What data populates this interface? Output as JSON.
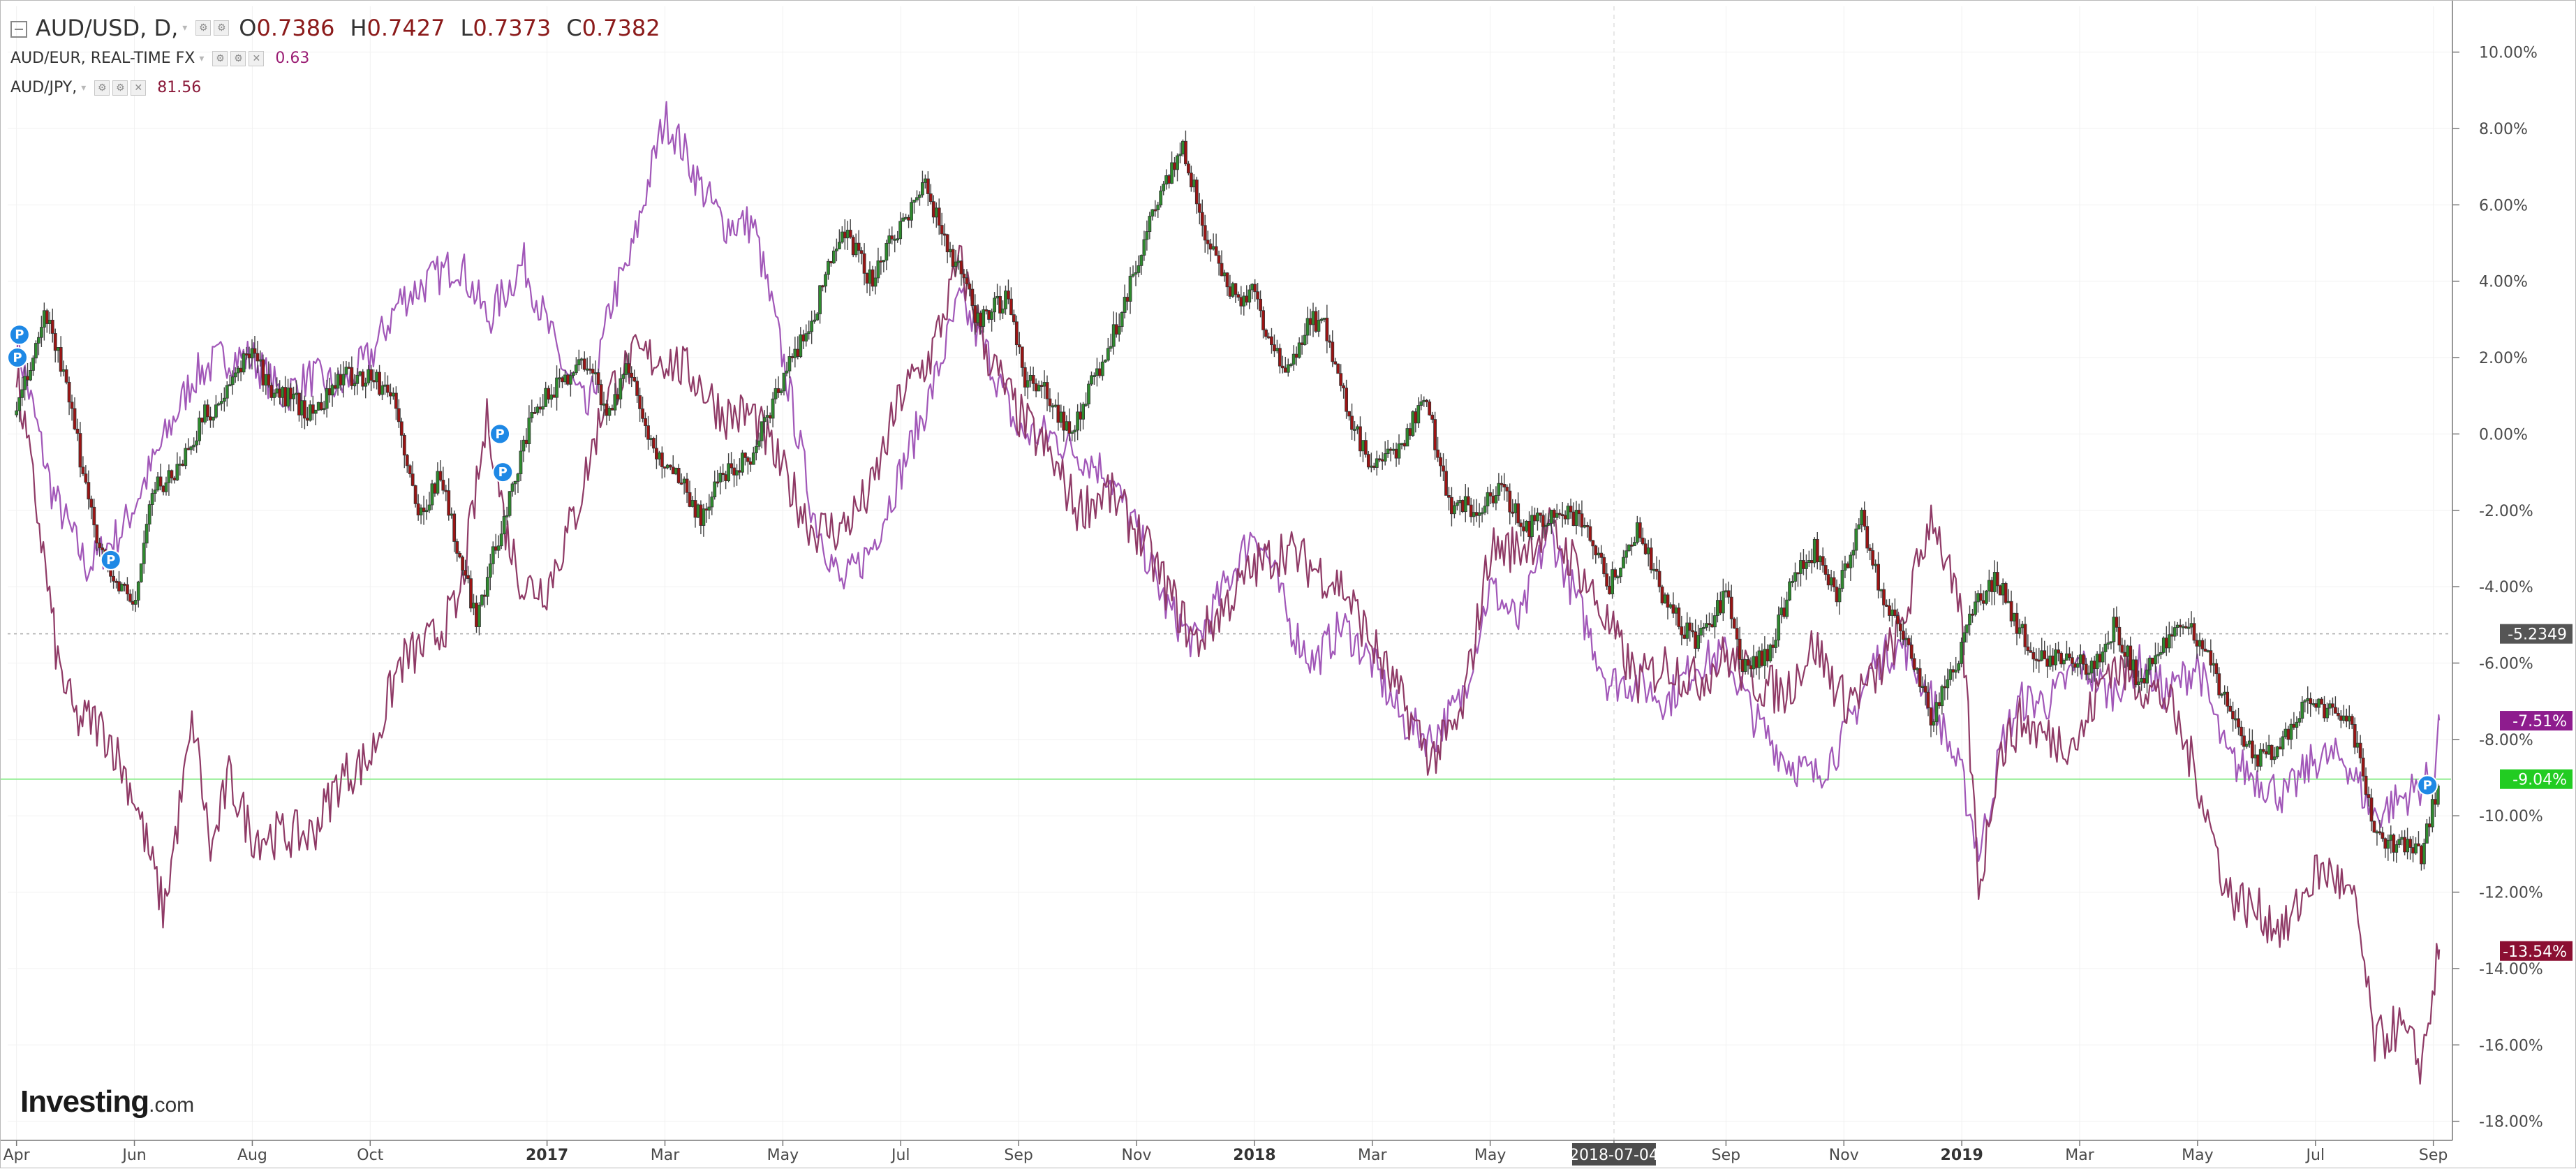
{
  "legend": {
    "main_symbol": "AUD/USD, D,",
    "open_key": "O",
    "open_val": "0.7386",
    "high_key": "H",
    "high_val": "0.7427",
    "low_key": "L",
    "low_val": "0.7373",
    "close_key": "C",
    "close_val": "0.7382",
    "series2_label": "AUD/EUR, REAL-TIME FX",
    "series2_value": "0.63",
    "series3_label": "AUD/JPY,",
    "series3_value": "81.56"
  },
  "logo": {
    "brand": "Investing",
    "suffix": ".com"
  },
  "colors": {
    "up_candle": "#2e8b2e",
    "down_candle": "#9b1414",
    "aud_eur_line": "#a157b8",
    "aud_jpy_line": "#8f3a66",
    "price_line": "#90ee90",
    "reference_line": "#aaaaaa",
    "badge_ref": "#555555",
    "badge_eur": "#8e1c8e",
    "badge_price": "#22cc22",
    "badge_jpy": "#8b0f32"
  },
  "chart_data": {
    "type": "line",
    "title": "AUD/USD, D,",
    "y_unit": "%",
    "ylim": [
      -18.5,
      11.2
    ],
    "y_ticks": [
      "10.00%",
      "8.00%",
      "6.00%",
      "4.00%",
      "2.00%",
      "0.00%",
      "-2.00%",
      "-4.00%",
      "-6.00%",
      "-8.00%",
      "-10.00%",
      "-12.00%",
      "-14.00%",
      "-16.00%",
      "-18.00%"
    ],
    "y_tick_values": [
      10,
      8,
      6,
      4,
      2,
      0,
      -2,
      -4,
      -6,
      -8,
      -10,
      -12,
      -14,
      -16,
      -18
    ],
    "x_ticks": [
      "Apr",
      "Jun",
      "Aug",
      "Oct",
      "2017",
      "Mar",
      "May",
      "Jul",
      "Sep",
      "Nov",
      "2018",
      "Mar",
      "May",
      "2018-07-04",
      "Sep",
      "Nov",
      "2019",
      "Mar",
      "May",
      "Jul",
      "Sep"
    ],
    "x_tick_months": [
      0,
      2,
      4,
      6,
      9,
      11,
      13,
      15,
      17,
      19,
      21,
      23,
      25,
      27.1,
      29,
      31,
      33,
      35,
      37,
      39,
      41
    ],
    "x_bold_ticks": [
      "2017",
      "2018",
      "2019"
    ],
    "x_highlight_tick": "2018-07-04",
    "x_month_range": [
      -0.15,
      41.3
    ],
    "grid": true,
    "legend_position": "top-left",
    "series": [
      {
        "name": "AUD/USD, D,",
        "style": "candlestick",
        "x_months": [
          0,
          0.5,
          0.8,
          1.2,
          1.5,
          2,
          2.3,
          2.7,
          3.2,
          3.5,
          4,
          4.3,
          4.6,
          5,
          5.5,
          6,
          6.4,
          6.8,
          7.2,
          7.5,
          7.8,
          8.3,
          8.7,
          9,
          9.3,
          9.7,
          10,
          10.4,
          10.8,
          11.2,
          11.6,
          12,
          12.5,
          13,
          13.5,
          14,
          14.5,
          15,
          15.4,
          15.8,
          16.3,
          16.8,
          17.1,
          17.5,
          17.9,
          18.3,
          18.7,
          19,
          19.4,
          19.8,
          20.2,
          20.7,
          21,
          21.3,
          21.6,
          21.9,
          22.2,
          22.6,
          23,
          23.4,
          23.9,
          24.3,
          24.8,
          25.2,
          25.6,
          26.1,
          26.6,
          27,
          27.5,
          28,
          28.5,
          29,
          29.3,
          29.7,
          30.1,
          30.5,
          30.9,
          31.3,
          31.7,
          32.1,
          32.5,
          32.9,
          33.2,
          33.6,
          34,
          34.4,
          34.8,
          35.2,
          35.6,
          36,
          36.4,
          36.8,
          37.2,
          37.6,
          38,
          38.4,
          38.8,
          39.2,
          39.6,
          40,
          40.4,
          40.8,
          41.1
        ],
        "values": [
          0.5,
          3.2,
          1.5,
          -1.5,
          -3.5,
          -4.5,
          -1.5,
          -1.0,
          0.5,
          0.8,
          2.4,
          1.0,
          1.0,
          0.5,
          1.5,
          1.5,
          1.0,
          -2.2,
          -1.0,
          -3.2,
          -4.8,
          -2.0,
          0.2,
          1.0,
          1.5,
          2.0,
          0.5,
          1.8,
          -0.5,
          -1.0,
          -2.2,
          -1.0,
          -0.5,
          1.5,
          3.0,
          5.5,
          4.0,
          5.5,
          6.5,
          5.0,
          3.0,
          3.5,
          1.5,
          1.0,
          0.0,
          1.5,
          3.0,
          4.5,
          6.2,
          7.5,
          5.0,
          3.5,
          3.8,
          2.2,
          1.5,
          3.0,
          2.8,
          0.5,
          -1.0,
          -0.5,
          1.0,
          -1.8,
          -2.0,
          -1.5,
          -2.5,
          -2.0,
          -2.2,
          -4.0,
          -2.5,
          -4.5,
          -5.5,
          -4.2,
          -6.2,
          -5.8,
          -4.0,
          -3.0,
          -4.2,
          -2.2,
          -4.5,
          -5.5,
          -7.5,
          -6.0,
          -4.5,
          -3.8,
          -5.2,
          -6.0,
          -5.8,
          -6.2,
          -5.0,
          -6.5,
          -5.5,
          -4.8,
          -6.0,
          -7.5,
          -8.5,
          -8.2,
          -7.0,
          -7.2,
          -7.5,
          -10.5,
          -10.8,
          -11.0,
          -9.0
        ]
      },
      {
        "name": "AUD/EUR, REAL-TIME FX",
        "style": "line",
        "x_months": [
          0,
          0.6,
          1.2,
          1.8,
          2.4,
          3,
          3.5,
          4,
          4.5,
          5,
          5.5,
          6,
          6.5,
          7,
          7.5,
          8,
          8.6,
          9.2,
          9.7,
          10.1,
          10.4,
          10.7,
          11,
          11.3,
          11.6,
          12,
          12.5,
          13,
          13.5,
          14,
          14.5,
          15,
          15.5,
          16,
          16.5,
          17,
          17.5,
          18,
          18.5,
          19,
          19.5,
          20,
          20.5,
          21,
          21.3,
          21.6,
          22,
          22.5,
          23,
          23.5,
          24,
          24.5,
          25,
          25.5,
          26,
          26.5,
          27,
          27.5,
          28,
          28.5,
          29,
          29.5,
          30,
          30.5,
          31,
          31.5,
          32,
          32.5,
          33,
          33.3,
          33.7,
          34,
          34.5,
          35,
          35.5,
          36,
          36.5,
          37,
          37.5,
          38,
          38.5,
          39,
          39.5,
          40,
          40.5,
          41,
          41.1
        ],
        "values": [
          2.5,
          -1.5,
          -3.5,
          -2.5,
          -0.5,
          1.5,
          2.0,
          2.0,
          1.0,
          1.5,
          1.2,
          2.0,
          3.5,
          4.0,
          4.5,
          3.0,
          4.5,
          2.0,
          0.5,
          3.5,
          4.5,
          6.5,
          8.3,
          7.5,
          6.5,
          5.5,
          5.5,
          2.0,
          -2.0,
          -4.0,
          -3.0,
          -1.0,
          1.0,
          3.5,
          2.0,
          0.0,
          0.0,
          -0.5,
          -1.0,
          -2.5,
          -4.5,
          -5.5,
          -4.0,
          -2.5,
          -3.5,
          -5.0,
          -6.0,
          -5.0,
          -6.0,
          -7.5,
          -8.0,
          -7.0,
          -4.0,
          -5.0,
          -2.5,
          -4.5,
          -6.5,
          -6.5,
          -7.0,
          -6.0,
          -5.8,
          -7.5,
          -8.5,
          -9.0,
          -8.0,
          -6.0,
          -5.5,
          -7.0,
          -9.0,
          -11.0,
          -8.0,
          -7.0,
          -7.0,
          -6.0,
          -6.8,
          -6.0,
          -6.8,
          -6.0,
          -8.5,
          -9.0,
          -9.5,
          -8.5,
          -8.5,
          -10.0,
          -9.5,
          -9.0,
          -7.5
        ]
      },
      {
        "name": "AUD/JPY,",
        "style": "line",
        "x_months": [
          0,
          0.4,
          0.7,
          1.0,
          1.3,
          1.6,
          2.0,
          2.5,
          2.8,
          3.0,
          3.3,
          3.6,
          4.0,
          4.5,
          5.0,
          5.5,
          6.0,
          6.5,
          7.0,
          7.5,
          8.0,
          8.3,
          8.6,
          9.0,
          9.5,
          10.0,
          10.5,
          11,
          11.5,
          12,
          12.5,
          13,
          13.5,
          14,
          14.5,
          15,
          15.5,
          16,
          16.5,
          17,
          17.5,
          18,
          18.5,
          19,
          19.5,
          20,
          20.5,
          21,
          21.5,
          22,
          22.5,
          23,
          23.5,
          24,
          24.5,
          25,
          25.5,
          26,
          26.5,
          27,
          27.5,
          28,
          28.5,
          29,
          29.5,
          30,
          30.5,
          31,
          31.5,
          32,
          32.5,
          33,
          33.3,
          33.6,
          34,
          34.5,
          35,
          35.5,
          36,
          36.5,
          37,
          37.5,
          38,
          38.5,
          39,
          39.3,
          39.7,
          40.0,
          40.4,
          40.8,
          41.1
        ],
        "values": [
          1.5,
          -2.5,
          -6.0,
          -7.5,
          -7.5,
          -8.0,
          -9.5,
          -12.5,
          -9.5,
          -7.5,
          -11.0,
          -9.0,
          -10.5,
          -10.5,
          -10.5,
          -9.0,
          -8.5,
          -6.0,
          -5.5,
          -4.5,
          0.5,
          -2.5,
          -4.0,
          -4.0,
          -2.0,
          1.0,
          2.0,
          2.0,
          1.5,
          0.5,
          0.5,
          -1.0,
          -2.5,
          -2.5,
          -1.5,
          1.0,
          2.0,
          4.5,
          2.0,
          0.5,
          -0.5,
          -2.0,
          -1.5,
          -2.5,
          -4.0,
          -5.5,
          -4.5,
          -3.5,
          -3.0,
          -3.5,
          -4.0,
          -5.5,
          -7.0,
          -8.5,
          -7.5,
          -3.0,
          -3.0,
          -2.5,
          -3.5,
          -5.0,
          -6.5,
          -6.0,
          -6.5,
          -5.8,
          -6.5,
          -6.8,
          -5.5,
          -7.0,
          -6.5,
          -5.0,
          -2.0,
          -5.0,
          -12.0,
          -8.5,
          -7.5,
          -8.0,
          -8.0,
          -6.0,
          -6.5,
          -7.0,
          -9.0,
          -12.0,
          -12.5,
          -13.0,
          -11.5,
          -11.5,
          -12.5,
          -16.0,
          -15.5,
          -16.5,
          -13.5
        ]
      }
    ],
    "reference_line": {
      "value": -5.2349,
      "label": "-5.2349"
    },
    "current_price_line": {
      "value": -9.04
    },
    "badges": [
      {
        "label": "-5.2349",
        "value": -5.2349
      },
      {
        "label": "-7.51%",
        "value": -7.51
      },
      {
        "label": "-9.04%",
        "value": -9.04
      },
      {
        "label": "-13.54%",
        "value": -13.54
      }
    ],
    "markers": [
      {
        "label": "P",
        "x_month": 0.05,
        "value": 2.6
      },
      {
        "label": "P",
        "x_month": -0.1,
        "value": 2.0
      },
      {
        "label": "P",
        "x_month": 1.6,
        "value": -3.3
      },
      {
        "label": "P",
        "x_month": 8.2,
        "value": 0.0
      },
      {
        "label": "P",
        "x_month": 8.25,
        "value": -1.0
      },
      {
        "label": "P",
        "x_month": 40.9,
        "value": -9.2
      }
    ]
  }
}
